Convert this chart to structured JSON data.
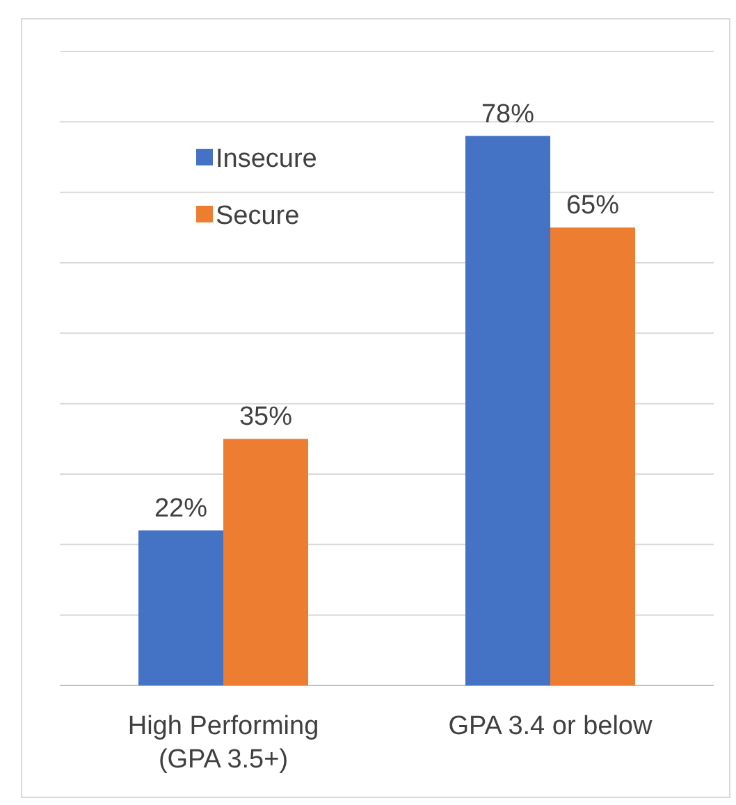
{
  "chart_data": {
    "type": "bar",
    "categories": [
      "High Performing\n(GPA 3.5+)",
      "GPA 3.4 or below"
    ],
    "series": [
      {
        "name": "Insecure",
        "color": "#4472c4",
        "values": [
          22,
          78
        ],
        "value_labels": [
          "22%",
          "78%"
        ]
      },
      {
        "name": "Secure",
        "color": "#ed7d31",
        "values": [
          35,
          65
        ],
        "value_labels": [
          "35%",
          "65%"
        ]
      }
    ],
    "ylim": [
      0,
      90
    ],
    "yticks": [
      {
        "value": 0,
        "label": null
      },
      {
        "value": 10,
        "label": null
      },
      {
        "value": 20,
        "label": null
      },
      {
        "value": 30,
        "label": null
      },
      {
        "value": 40,
        "label": null
      },
      {
        "value": 50,
        "label": null
      },
      {
        "value": 60,
        "label": null
      },
      {
        "value": 70,
        "label": null
      },
      {
        "value": 80,
        "label": null
      },
      {
        "value": 90,
        "label": null
      }
    ],
    "grid": "y",
    "legend": "top left",
    "tick_labels": "x"
  }
}
